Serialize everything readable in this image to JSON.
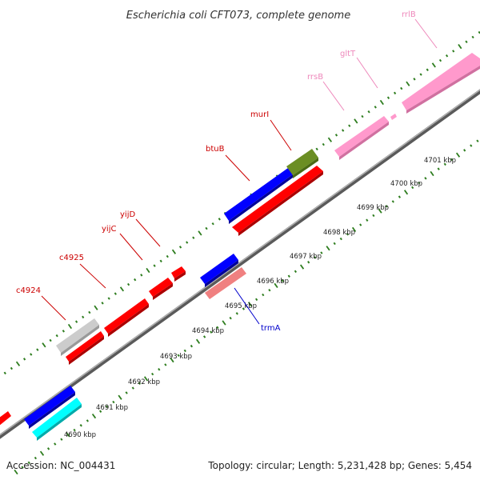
{
  "title": "Escherichia coli CFT073, complete genome",
  "footer": {
    "accession": "Accession: NC_004431",
    "summary": "Topology: circular; Length: 5,231,428 bp; Genes: 5,454"
  },
  "colors": {
    "backbone": "#777777",
    "tick": "#2e7d1f",
    "forward_gene": "#ff0000",
    "rrna": "#ff99cc",
    "blue_gene": "#0000ff",
    "cyan_gene": "#00ffff",
    "olive_gene": "#6b8e23",
    "gray_gene": "#cccccc",
    "salmon_gene": "#f08080",
    "label_red": "#cc0000",
    "label_pink": "#ee88bb",
    "label_blue": "#0000cc"
  },
  "axis_ticks": [
    "4690 kbp",
    "4691 kbp",
    "4692 kbp",
    "4693 kbp",
    "4694 kbp",
    "4695 kbp",
    "4696 kbp",
    "4697 kbp",
    "4698 kbp",
    "4699 kbp",
    "4700 kbp",
    "4701 kbp"
  ],
  "gene_labels": [
    {
      "text": "c4924",
      "tone": "label_red"
    },
    {
      "text": "c4925",
      "tone": "label_red"
    },
    {
      "text": "yijC",
      "tone": "label_red"
    },
    {
      "text": "yijD",
      "tone": "label_red"
    },
    {
      "text": "btuB",
      "tone": "label_red"
    },
    {
      "text": "murI",
      "tone": "label_red"
    },
    {
      "text": "rrsB",
      "tone": "label_pink"
    },
    {
      "text": "gltT",
      "tone": "label_pink"
    },
    {
      "text": "rrlB",
      "tone": "label_pink"
    },
    {
      "text": "trmA",
      "tone": "label_blue"
    }
  ]
}
